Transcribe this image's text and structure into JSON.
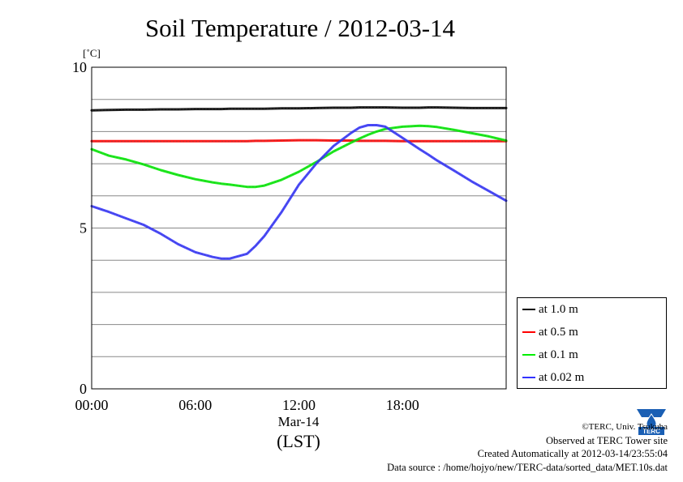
{
  "title": "Soil Temperature / 2012-03-14",
  "chart_data": {
    "type": "line",
    "ylabel": "[˚C]",
    "ylim": [
      0,
      10
    ],
    "yticks": [
      "0",
      "5",
      "10"
    ],
    "xlim": [
      0,
      24
    ],
    "xticks": [
      "00:00",
      "06:00",
      "12:00",
      "18:00"
    ],
    "xsub": "Mar-14",
    "xlabel": "(LST)",
    "grid": true,
    "legend_position": "right",
    "x": [
      0,
      1,
      2,
      3,
      4,
      5,
      6,
      7,
      7.5,
      8,
      9,
      9.5,
      10,
      11,
      12,
      13,
      14,
      15,
      15.5,
      16,
      16.5,
      17,
      18,
      19,
      19.5,
      20,
      21,
      22,
      23,
      24
    ],
    "series": [
      {
        "name": "at 1.0 m",
        "color": "#000000",
        "values": [
          8.66,
          8.67,
          8.68,
          8.68,
          8.69,
          8.69,
          8.7,
          8.7,
          8.7,
          8.71,
          8.71,
          8.71,
          8.71,
          8.72,
          8.72,
          8.73,
          8.74,
          8.74,
          8.75,
          8.75,
          8.75,
          8.75,
          8.74,
          8.74,
          8.75,
          8.75,
          8.74,
          8.73,
          8.73,
          8.73
        ]
      },
      {
        "name": "at 0.5 m",
        "color": "#ff0000",
        "values": [
          7.7,
          7.7,
          7.7,
          7.7,
          7.7,
          7.7,
          7.7,
          7.7,
          7.7,
          7.7,
          7.7,
          7.71,
          7.71,
          7.72,
          7.73,
          7.73,
          7.72,
          7.72,
          7.71,
          7.71,
          7.71,
          7.71,
          7.7,
          7.7,
          7.7,
          7.7,
          7.7,
          7.7,
          7.7,
          7.7
        ]
      },
      {
        "name": "at 0.1 m",
        "color": "#00ee00",
        "values": [
          7.45,
          7.25,
          7.13,
          6.98,
          6.8,
          6.65,
          6.52,
          6.42,
          6.38,
          6.35,
          6.28,
          6.28,
          6.32,
          6.5,
          6.75,
          7.05,
          7.38,
          7.65,
          7.78,
          7.9,
          8.0,
          8.08,
          8.15,
          8.18,
          8.17,
          8.14,
          8.05,
          7.95,
          7.85,
          7.72
        ]
      },
      {
        "name": "at 0.02 m",
        "color": "#3333ff",
        "values": [
          5.68,
          5.5,
          5.3,
          5.1,
          4.82,
          4.5,
          4.25,
          4.1,
          4.05,
          4.05,
          4.2,
          4.45,
          4.75,
          5.5,
          6.35,
          7.0,
          7.55,
          7.95,
          8.12,
          8.2,
          8.2,
          8.15,
          7.8,
          7.45,
          7.28,
          7.1,
          6.78,
          6.45,
          6.15,
          5.85
        ]
      }
    ]
  },
  "credits": {
    "copyright": "©TERC, Univ. Tsukuba",
    "site": "Observed at TERC Tower site",
    "created": "Created Automatically at 2012-03-14/23:55:04",
    "source": "Data source : /home/hojyo/new/TERC-data/sorted_data/MET.10s.dat"
  },
  "logo_text": "TERC"
}
